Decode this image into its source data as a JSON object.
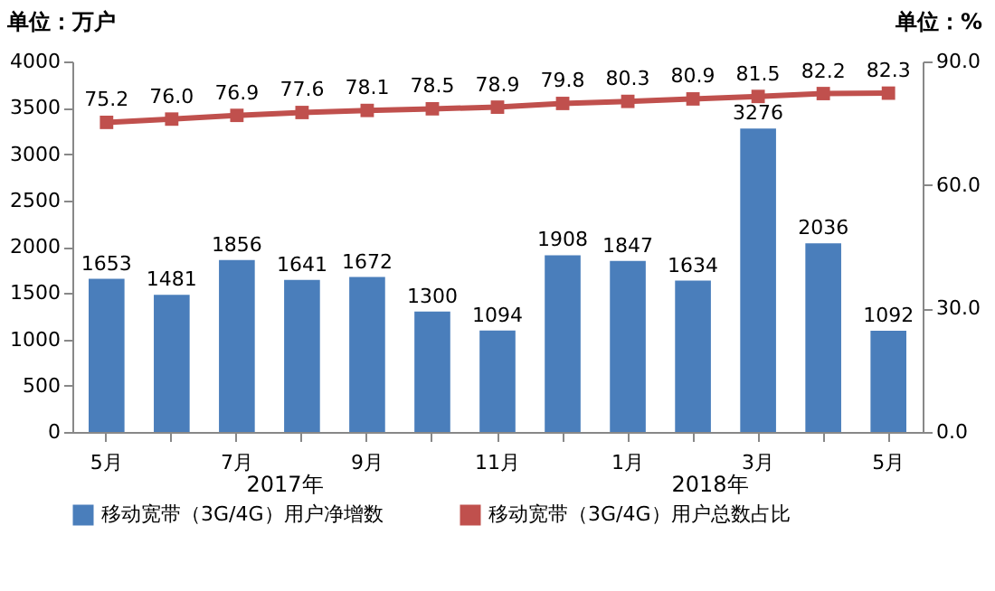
{
  "chart_data": {
    "type": "bar",
    "ylabel": "单位：万户",
    "y2label": "单位：%",
    "categories": [
      "5月",
      null,
      "7月",
      null,
      "9月",
      null,
      "11月",
      null,
      "1月",
      null,
      "3月",
      null,
      "5月"
    ],
    "series": [
      {
        "name": "移动宽带（3G/4G）用户净增数",
        "color": "#4a7ebb",
        "values": [
          1653,
          1481,
          1856,
          1641,
          1672,
          1300,
          1094,
          1908,
          1847,
          1634,
          3276,
          2036,
          1092
        ]
      },
      {
        "name": "移动宽带（3G/4G）用户总数占比",
        "type": "line",
        "axis": "y2",
        "color": "#c0504d",
        "marker": "square",
        "values": [
          75.2,
          76.0,
          76.9,
          77.6,
          78.1,
          78.5,
          78.9,
          79.8,
          80.3,
          80.9,
          81.5,
          82.2,
          82.3
        ],
        "value_labels": [
          "75.2",
          "76.0",
          "76.9",
          "77.6",
          "78.1",
          "78.5",
          "78.9",
          "79.8",
          "80.3",
          "80.9",
          "81.5",
          "82.2",
          "82.3"
        ]
      }
    ],
    "ylim": [
      0,
      4000
    ],
    "yticks": [
      0,
      500,
      1000,
      1500,
      2000,
      2500,
      3000,
      3500,
      4000
    ],
    "y2lim": [
      0,
      90
    ],
    "y2ticks": [
      {
        "value": 0,
        "label": "0.0"
      },
      {
        "value": 30,
        "label": "30.0"
      },
      {
        "value": 60,
        "label": "60.0"
      },
      {
        "value": 90,
        "label": "90.0"
      }
    ],
    "annotations": [
      "2017年",
      "2018年"
    ],
    "data_labels": true,
    "legend": "bottom",
    "grid": false
  }
}
